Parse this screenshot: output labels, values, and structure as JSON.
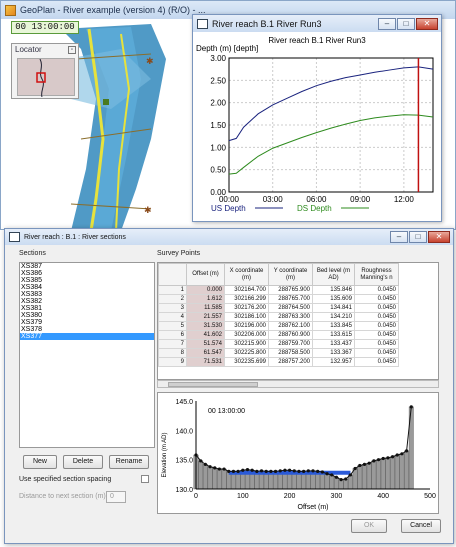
{
  "geoplan": {
    "title": "GeoPlan - River example (version 4) (R/O) - ...",
    "time": "00 13:00:00",
    "locator_title": "Locator"
  },
  "profile": {
    "title": "River reach B.1 River Run3",
    "chart_data": {
      "type": "line",
      "title": "River reach B.1 River Run3",
      "ylabel": "Depth (m) [depth]",
      "xlabel": "",
      "x_ticks": [
        "00:00",
        "03:00",
        "06:00",
        "09:00",
        "12:00"
      ],
      "y_ticks": [
        "0.00",
        "0.50",
        "1.00",
        "1.50",
        "2.00",
        "2.50",
        "3.00"
      ],
      "ylim": [
        0,
        3.0
      ],
      "xlim_hours": [
        0,
        14
      ],
      "marker_hour": 13,
      "series": [
        {
          "name": "US Depth",
          "color": "#1a237e",
          "x": [
            0,
            0.5,
            1,
            2,
            3,
            4,
            5,
            6,
            7,
            8,
            9,
            10,
            11,
            12,
            13,
            14
          ],
          "values": [
            1.15,
            1.2,
            1.45,
            1.75,
            1.95,
            2.1,
            2.25,
            2.38,
            2.48,
            2.56,
            2.62,
            2.68,
            2.73,
            2.78,
            2.8,
            2.75
          ]
        },
        {
          "name": "DS Depth",
          "color": "#2e8b1e",
          "x": [
            0,
            0.5,
            1,
            2,
            3,
            4,
            5,
            6,
            7,
            8,
            9,
            10,
            11,
            12,
            13,
            14
          ],
          "values": [
            0.4,
            0.42,
            0.55,
            0.8,
            0.98,
            1.1,
            1.22,
            1.33,
            1.43,
            1.52,
            1.6,
            1.66,
            1.7,
            1.73,
            1.72,
            1.68
          ]
        }
      ]
    }
  },
  "sections": {
    "title": "River reach : B.1 : River sections",
    "sections_label": "Sections",
    "survey_label": "Survey Points",
    "list": [
      "XS387",
      "XS386",
      "XS385",
      "XS384",
      "XS383",
      "XS382",
      "XS381",
      "XS380",
      "XS379",
      "XS378",
      "XS377"
    ],
    "selected": "XS377",
    "buttons": {
      "new": "New",
      "delete": "Delete",
      "rename": "Rename",
      "ok": "OK",
      "cancel": "Cancel"
    },
    "use_spacing_label": "Use specified section spacing",
    "distance_label": "Distance to next section (m)",
    "distance_value": "0",
    "columns": [
      "Offset (m)",
      "X coordinate (m)",
      "Y coordinate (m)",
      "Bed level (m AD)",
      "Roughness Manning's n"
    ],
    "rows": [
      [
        "1",
        "0.000",
        "302164.700",
        "288765.900",
        "135.846",
        "0.0450"
      ],
      [
        "2",
        "1.612",
        "302166.299",
        "288765.700",
        "135.609",
        "0.0450"
      ],
      [
        "3",
        "11.585",
        "302176.200",
        "288764.500",
        "134.841",
        "0.0450"
      ],
      [
        "4",
        "21.557",
        "302186.100",
        "288763.300",
        "134.210",
        "0.0450"
      ],
      [
        "5",
        "31.530",
        "302196.000",
        "288762.100",
        "133.845",
        "0.0450"
      ],
      [
        "6",
        "41.602",
        "302206.000",
        "288760.900",
        "133.615",
        "0.0450"
      ],
      [
        "7",
        "51.574",
        "302215.900",
        "288759.700",
        "133.437",
        "0.0450"
      ],
      [
        "8",
        "61.547",
        "302225.800",
        "288758.500",
        "133.367",
        "0.0450"
      ],
      [
        "9",
        "71.531",
        "302235.699",
        "288757.200",
        "132.957",
        "0.0450"
      ]
    ],
    "xs_chart": {
      "type": "area",
      "time_label": "00 13:00:00",
      "xlabel": "Offset (m)",
      "ylabel": "Elevation (m AD)",
      "x_ticks": [
        "0",
        "100",
        "200",
        "300",
        "400",
        "500"
      ],
      "y_ticks": [
        "130.0",
        "135.0",
        "140.0",
        "145.0"
      ],
      "xlim": [
        0,
        500
      ],
      "ylim": [
        130,
        145
      ],
      "water_level": 132.6,
      "offsets": [
        0,
        10,
        20,
        30,
        40,
        50,
        60,
        70,
        80,
        90,
        100,
        110,
        120,
        130,
        140,
        150,
        160,
        170,
        180,
        190,
        200,
        210,
        220,
        230,
        240,
        250,
        260,
        270,
        280,
        290,
        300,
        310,
        320,
        330,
        340,
        350,
        360,
        370,
        380,
        390,
        400,
        410,
        420,
        430,
        440,
        450,
        460
      ],
      "bed": [
        135.8,
        134.8,
        134.2,
        133.8,
        133.6,
        133.4,
        133.4,
        133.0,
        133.0,
        133.0,
        133.2,
        133.3,
        133.2,
        133.0,
        133.1,
        133.0,
        133.0,
        133.0,
        133.1,
        133.2,
        133.2,
        133.1,
        133.0,
        133.0,
        133.1,
        133.1,
        133.0,
        132.9,
        132.6,
        132.4,
        132.0,
        131.6,
        131.7,
        132.4,
        133.5,
        134.0,
        134.2,
        134.4,
        134.8,
        135.0,
        135.2,
        135.3,
        135.5,
        135.8,
        136.0,
        136.5,
        144.0
      ]
    }
  }
}
